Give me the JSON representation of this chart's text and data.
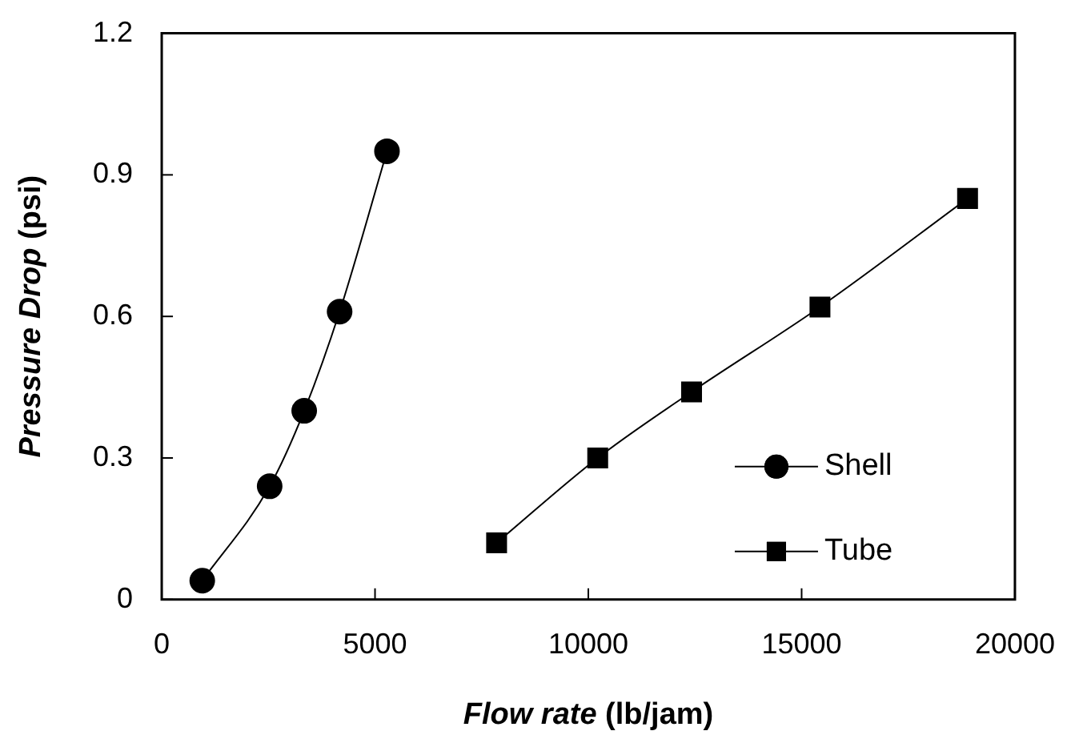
{
  "chart_data": {
    "type": "line",
    "xlabel": "Flow rate (lb/jam)",
    "ylabel": "Pressure Drop (psi)",
    "xlim": [
      0,
      20000
    ],
    "xticks": [
      0,
      5000,
      10000,
      15000,
      20000
    ],
    "ylim": [
      0,
      1.2
    ],
    "yticks": [
      0,
      0.3,
      0.6,
      0.9,
      1.2
    ],
    "grid": false,
    "legend": "bottom right",
    "line_style": "solid",
    "series": [
      {
        "name": "Shell",
        "color": "#000000",
        "marker": "circle",
        "x": [
          950,
          2530,
          3340,
          4170,
          5280
        ],
        "values": [
          0.04,
          0.24,
          0.4,
          0.61,
          0.95
        ]
      },
      {
        "name": "Tube",
        "color": "#000000",
        "marker": "square",
        "x": [
          7850,
          10220,
          12420,
          15430,
          18890
        ],
        "values": [
          0.12,
          0.3,
          0.44,
          0.62,
          0.85
        ]
      }
    ]
  }
}
